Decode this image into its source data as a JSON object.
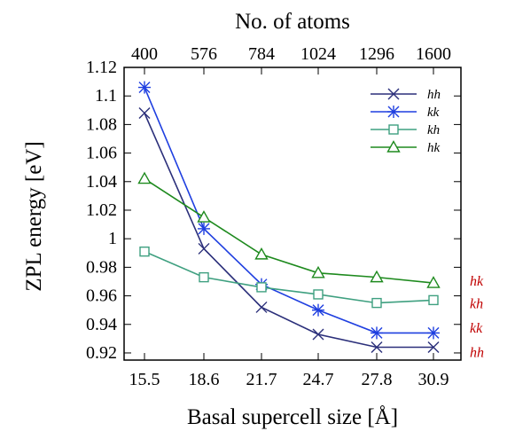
{
  "chart_data": {
    "type": "line",
    "xlabel": "Basal supercell size [Å]",
    "ylabel": "ZPL energy [eV]",
    "top_axis_label": "No. of atoms",
    "categories": [
      "15.5",
      "18.6",
      "21.7",
      "24.7",
      "27.8",
      "30.9"
    ],
    "top_categories": [
      "400",
      "576",
      "784",
      "1024",
      "1296",
      "1600"
    ],
    "ylim": [
      0.915,
      1.12
    ],
    "y_ticks": [
      "0.92",
      "0.94",
      "0.96",
      "0.98",
      "1",
      "1.02",
      "1.04",
      "1.06",
      "1.08",
      "1.1",
      "1.12"
    ],
    "grid": false,
    "legend_position": "top-right",
    "series": [
      {
        "name": "hh",
        "color": "#2b2f7a",
        "marker": "x",
        "values": [
          1.088,
          0.993,
          0.952,
          0.933,
          0.924,
          0.924
        ]
      },
      {
        "name": "kk",
        "color": "#1f3fe0",
        "marker": "asterisk",
        "values": [
          1.106,
          1.007,
          0.968,
          0.95,
          0.934,
          0.934
        ]
      },
      {
        "name": "kh",
        "color": "#3fa080",
        "marker": "square",
        "values": [
          0.991,
          0.973,
          0.966,
          0.961,
          0.955,
          0.957
        ]
      },
      {
        "name": "hk",
        "color": "#1e8a1e",
        "marker": "triangle",
        "values": [
          1.042,
          1.015,
          0.989,
          0.976,
          0.973,
          0.969
        ]
      }
    ],
    "annotations": [
      {
        "text": "hk",
        "y": 0.971,
        "color": "#c00000"
      },
      {
        "text": "kh",
        "y": 0.955,
        "color": "#c00000"
      },
      {
        "text": "kk",
        "y": 0.938,
        "color": "#c00000"
      },
      {
        "text": "hh",
        "y": 0.921,
        "color": "#c00000"
      }
    ]
  }
}
